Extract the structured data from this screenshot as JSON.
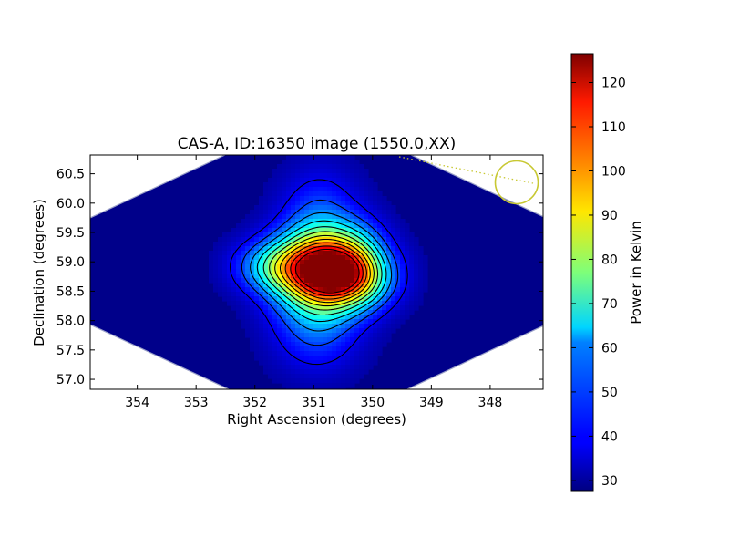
{
  "chart_data": {
    "type": "heatmap",
    "title": "CAS-A, ID:16350 image (1550.0,XX)",
    "xlabel": "Right Ascension (degrees)",
    "ylabel": "Declination (degrees)",
    "xlim": [
      354.8,
      347.1
    ],
    "ylim": [
      56.83,
      60.82
    ],
    "x_ticks": [
      354,
      353,
      352,
      351,
      350,
      349,
      348
    ],
    "y_ticks": [
      57.0,
      57.5,
      58.0,
      58.5,
      59.0,
      59.5,
      60.0,
      60.5
    ],
    "x_tick_labels": [
      "354",
      "353",
      "352",
      "351",
      "350",
      "349",
      "348"
    ],
    "y_tick_labels": [
      "57.0",
      "57.5",
      "58.0",
      "58.5",
      "59.0",
      "59.5",
      "60.0",
      "60.5"
    ],
    "colormap": "jet",
    "colorbar": {
      "label": "Power in Kelvin",
      "min": 27.5,
      "max": 126.5,
      "ticks": [
        30,
        40,
        50,
        60,
        70,
        80,
        90,
        100,
        110,
        120
      ],
      "tick_labels": [
        "30",
        "40",
        "50",
        "60",
        "70",
        "80",
        "90",
        "100",
        "110",
        "120"
      ]
    },
    "source": {
      "peak_ra": 350.85,
      "peak_dec": 58.87,
      "peak_value": 126,
      "background_value": 30
    },
    "contour_levels": [
      38,
      46,
      54,
      62,
      70,
      78,
      86,
      94,
      102,
      110,
      118
    ],
    "contour_color": "#000000",
    "beam": {
      "ra": 347.45,
      "dec": 60.38,
      "color": "#c8c832"
    },
    "grid": false
  }
}
